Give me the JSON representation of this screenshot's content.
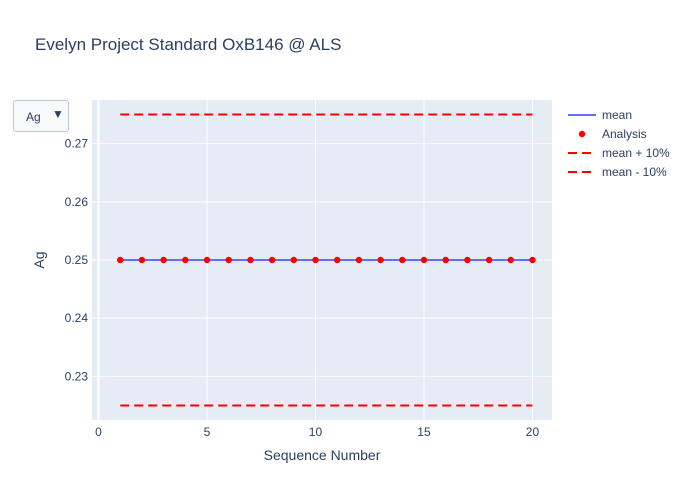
{
  "dropdown": {
    "selected": "Ag",
    "arrow": "▼"
  },
  "chart_data": {
    "type": "line",
    "title": "Evelyn Project Standard OxB146 @ ALS",
    "xlabel": "Sequence Number",
    "ylabel": "Ag",
    "xlim": [
      -0.3,
      20.9
    ],
    "ylim": [
      0.2225,
      0.2775
    ],
    "x_ticks": [
      0,
      5,
      10,
      15,
      20
    ],
    "y_ticks": [
      0.23,
      0.24,
      0.25,
      0.26,
      0.27
    ],
    "grid": true,
    "legend_position": "top-right",
    "series": [
      {
        "name": "mean",
        "style": "line",
        "color": "#636efa",
        "x": [
          1,
          20
        ],
        "y": [
          0.25,
          0.25
        ]
      },
      {
        "name": "Analysis",
        "style": "markers",
        "color": "#ff0000",
        "x": [
          1,
          2,
          3,
          4,
          5,
          6,
          7,
          8,
          9,
          10,
          11,
          12,
          13,
          14,
          15,
          16,
          17,
          18,
          19,
          20
        ],
        "y": [
          0.25,
          0.25,
          0.25,
          0.25,
          0.25,
          0.25,
          0.25,
          0.25,
          0.25,
          0.25,
          0.25,
          0.25,
          0.25,
          0.25,
          0.25,
          0.25,
          0.25,
          0.25,
          0.25,
          0.25
        ]
      },
      {
        "name": "mean + 10%",
        "style": "dash",
        "color": "#ff0000",
        "x": [
          1,
          20
        ],
        "y": [
          0.275,
          0.275
        ]
      },
      {
        "name": "mean - 10%",
        "style": "dash",
        "color": "#ff0000",
        "x": [
          1,
          20
        ],
        "y": [
          0.225,
          0.225
        ]
      }
    ]
  }
}
